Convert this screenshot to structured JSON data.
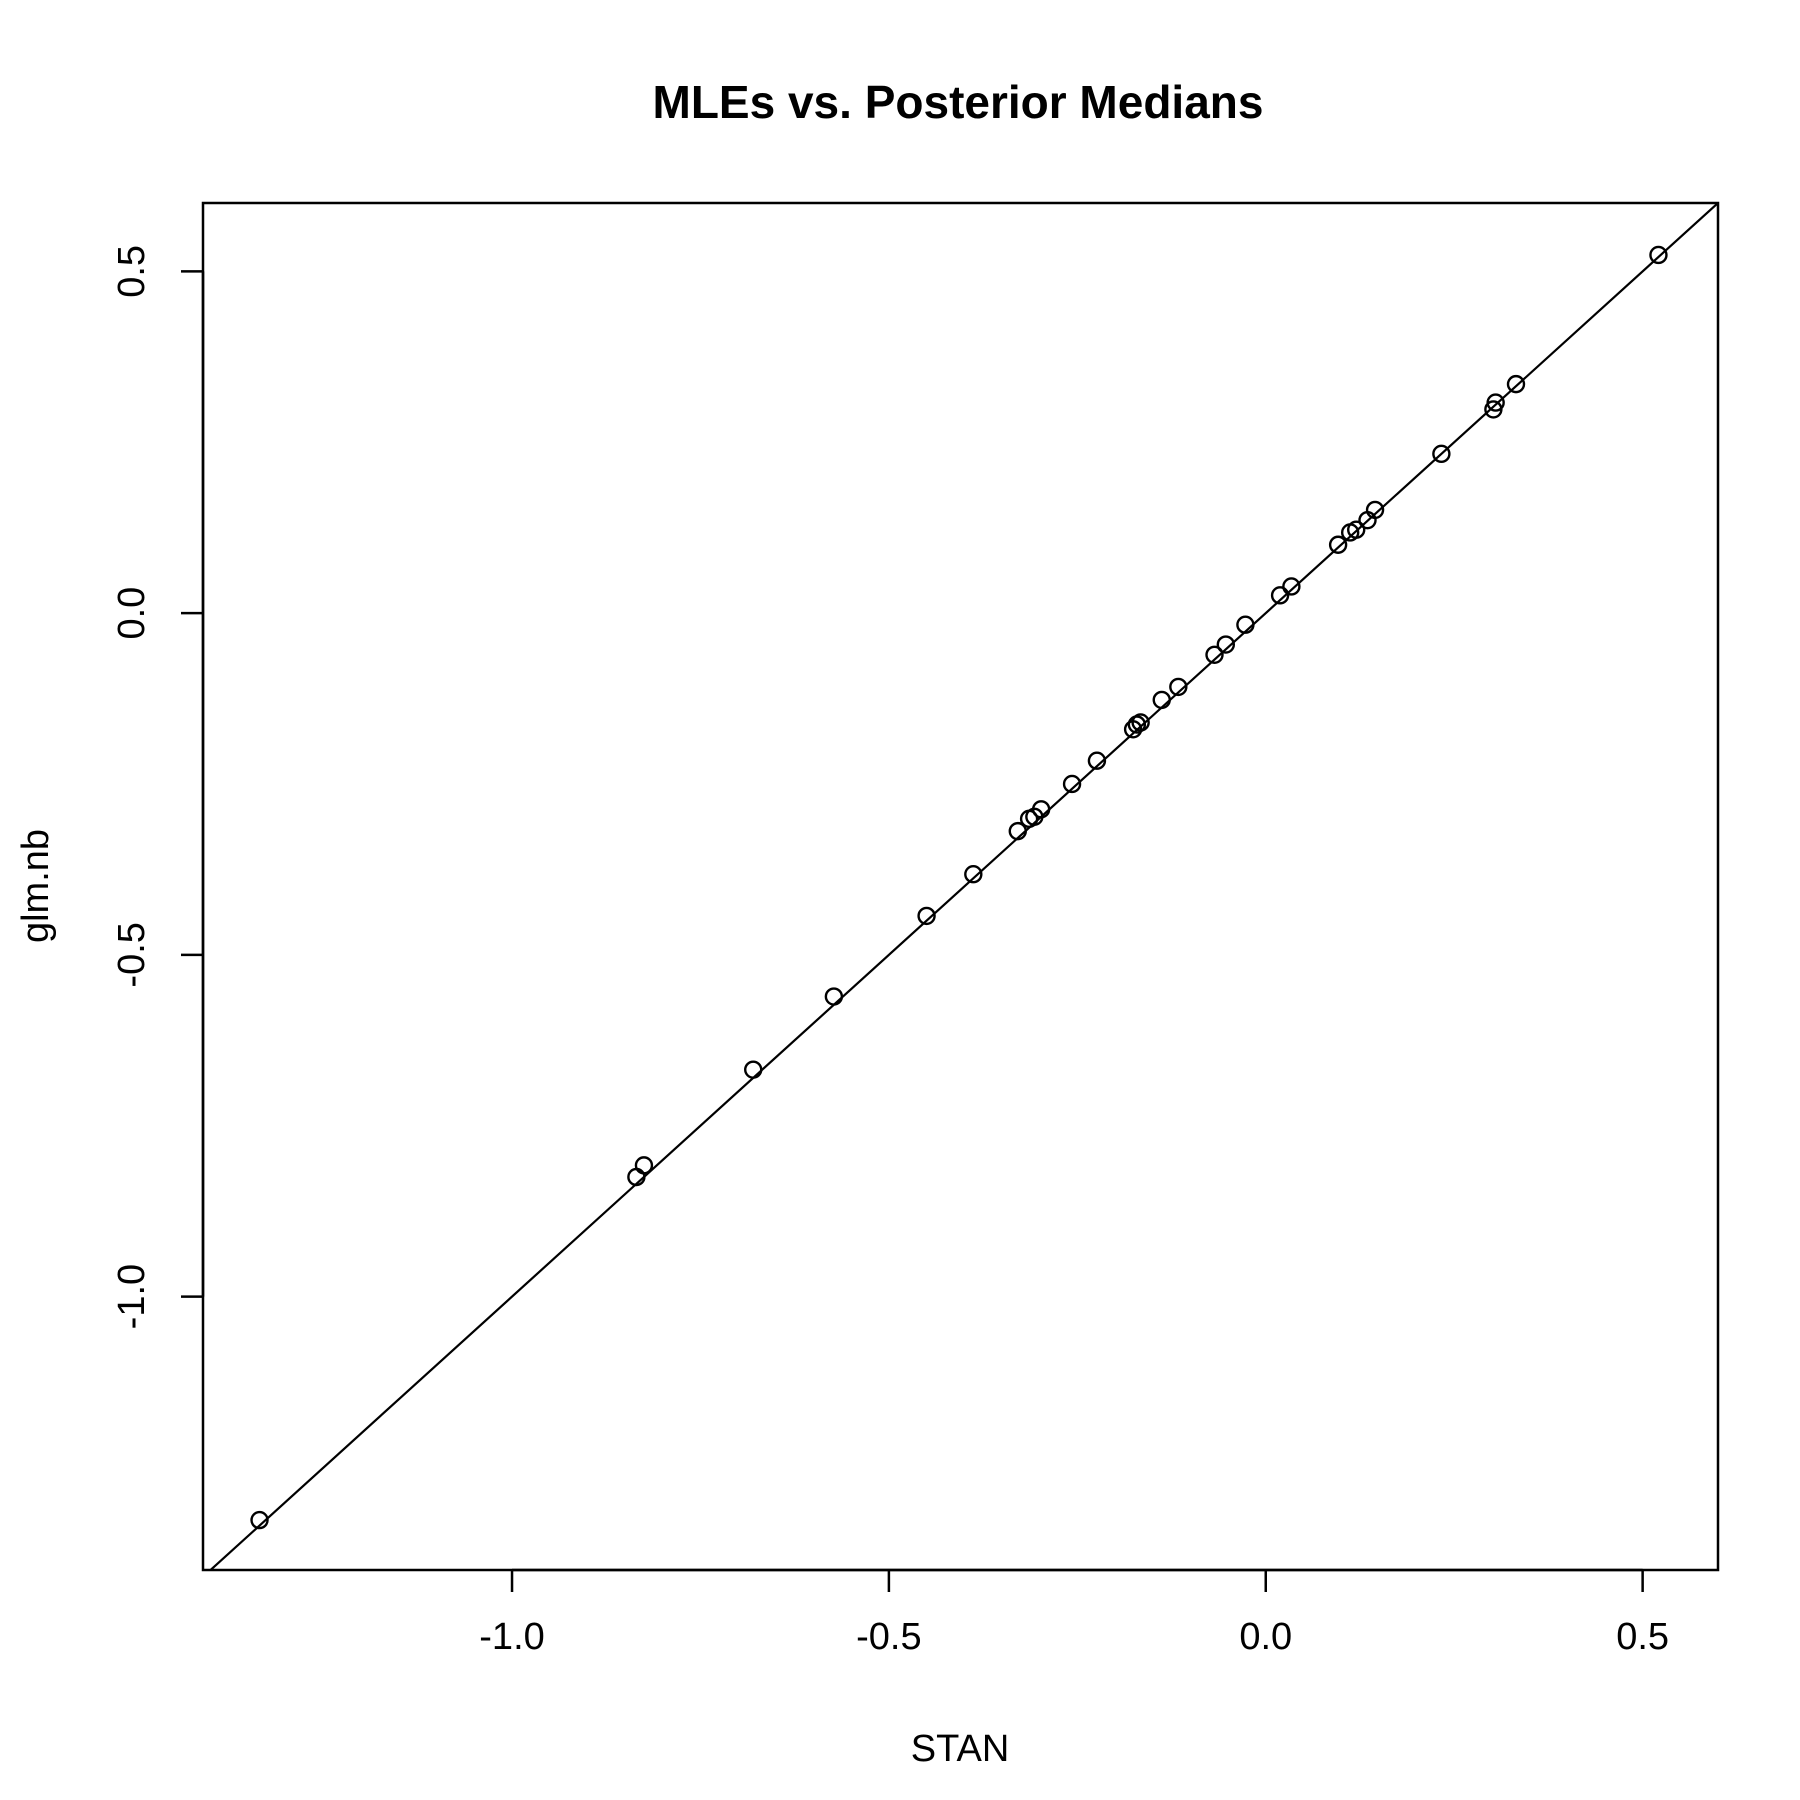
{
  "chart_data": {
    "type": "scatter",
    "title": "MLEs vs. Posterior Medians",
    "xlabel": "STAN",
    "ylabel": "glm.nb",
    "xlim": [
      -1.41,
      0.6
    ],
    "ylim": [
      -1.4,
      0.6
    ],
    "x_ticks": [
      -1.0,
      -0.5,
      0.0,
      0.5
    ],
    "x_tick_labels": [
      "-1.0",
      "-0.5",
      "0.0",
      "0.5"
    ],
    "y_ticks": [
      -1.0,
      -0.5,
      0.0,
      0.5
    ],
    "y_tick_labels": [
      "-1.0",
      "-0.5",
      "0.0",
      "0.5"
    ],
    "grid": false,
    "reference_line": {
      "intercept": 0,
      "slope": 1
    },
    "marker": "open-circle",
    "color": "#000000",
    "points": [
      {
        "x": -1.335,
        "y": -1.327
      },
      {
        "x": -0.835,
        "y": -0.825
      },
      {
        "x": -0.825,
        "y": -0.808
      },
      {
        "x": -0.68,
        "y": -0.668
      },
      {
        "x": -0.573,
        "y": -0.561
      },
      {
        "x": -0.45,
        "y": -0.443
      },
      {
        "x": -0.388,
        "y": -0.382
      },
      {
        "x": -0.329,
        "y": -0.319
      },
      {
        "x": -0.314,
        "y": -0.301
      },
      {
        "x": -0.307,
        "y": -0.298
      },
      {
        "x": -0.298,
        "y": -0.287
      },
      {
        "x": -0.257,
        "y": -0.25
      },
      {
        "x": -0.224,
        "y": -0.216
      },
      {
        "x": -0.176,
        "y": -0.17
      },
      {
        "x": -0.171,
        "y": -0.163
      },
      {
        "x": -0.166,
        "y": -0.16
      },
      {
        "x": -0.138,
        "y": -0.127
      },
      {
        "x": -0.116,
        "y": -0.108
      },
      {
        "x": -0.068,
        "y": -0.061
      },
      {
        "x": -0.053,
        "y": -0.046
      },
      {
        "x": -0.027,
        "y": -0.017
      },
      {
        "x": 0.019,
        "y": 0.026
      },
      {
        "x": 0.034,
        "y": 0.039
      },
      {
        "x": 0.096,
        "y": 0.1
      },
      {
        "x": 0.112,
        "y": 0.118
      },
      {
        "x": 0.12,
        "y": 0.122
      },
      {
        "x": 0.135,
        "y": 0.136
      },
      {
        "x": 0.145,
        "y": 0.151
      },
      {
        "x": 0.233,
        "y": 0.233
      },
      {
        "x": 0.302,
        "y": 0.298
      },
      {
        "x": 0.305,
        "y": 0.308
      },
      {
        "x": 0.332,
        "y": 0.335
      },
      {
        "x": 0.521,
        "y": 0.524
      }
    ]
  }
}
